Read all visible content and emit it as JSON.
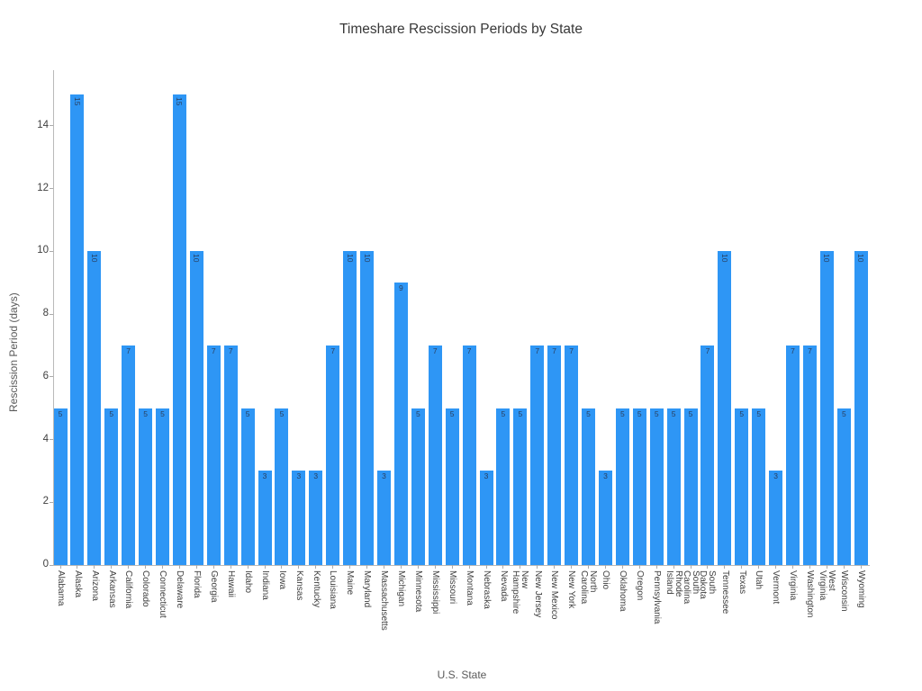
{
  "chart_data": {
    "type": "bar",
    "title": "Timeshare Rescission Periods by State",
    "xlabel": "U.S. State",
    "ylabel": "Rescission Period (days)",
    "ylim": [
      0,
      15.8
    ],
    "yticks": [
      0,
      2,
      4,
      6,
      8,
      10,
      12,
      14
    ],
    "grid": false,
    "legend": "none",
    "bar_color": "#2E96F5",
    "value_label_color": "#2a3f5f",
    "categories": [
      "Alabama",
      "Alaska",
      "Arizona",
      "Arkansas",
      "California",
      "Colorado",
      "Connecticut",
      "Delaware",
      "Florida",
      "Georgia",
      "Hawaii",
      "Idaho",
      "Indiana",
      "Iowa",
      "Kansas",
      "Kentucky",
      "Louisiana",
      "Maine",
      "Maryland",
      "Massachusetts",
      "Michigan",
      "Minnesota",
      "Mississippi",
      "Missouri",
      "Montana",
      "Nebraska",
      "Nevada",
      "New Hampshire",
      "New Jersey",
      "New Mexico",
      "New York",
      "North Carolina",
      "Ohio",
      "Oklahoma",
      "Oregon",
      "Pennsylvania",
      "Rhode Island",
      "South Carolina",
      "South Dakota",
      "Tennessee",
      "Texas",
      "Utah",
      "Vermont",
      "Virginia",
      "Washington",
      "West Virginia",
      "Wisconsin",
      "Wyoming"
    ],
    "values": [
      5,
      15,
      10,
      5,
      7,
      5,
      5,
      15,
      10,
      7,
      7,
      5,
      3,
      5,
      3,
      3,
      7,
      10,
      10,
      3,
      9,
      5,
      7,
      5,
      7,
      3,
      5,
      5,
      7,
      7,
      7,
      5,
      3,
      5,
      5,
      5,
      5,
      5,
      7,
      10,
      5,
      5,
      3,
      7,
      7,
      10,
      5,
      10
    ],
    "two_line_tick_labels": {
      "New Hampshire": [
        "New",
        "Hampshire"
      ],
      "North Carolina": [
        "North",
        "Carolina"
      ],
      "Rhode Island": [
        "Rhode",
        "Island"
      ],
      "South Carolina": [
        "South",
        "Carolina"
      ],
      "South Dakota": [
        "South",
        "Dakota"
      ],
      "West Virginia": [
        "West",
        "Virginia"
      ]
    }
  }
}
